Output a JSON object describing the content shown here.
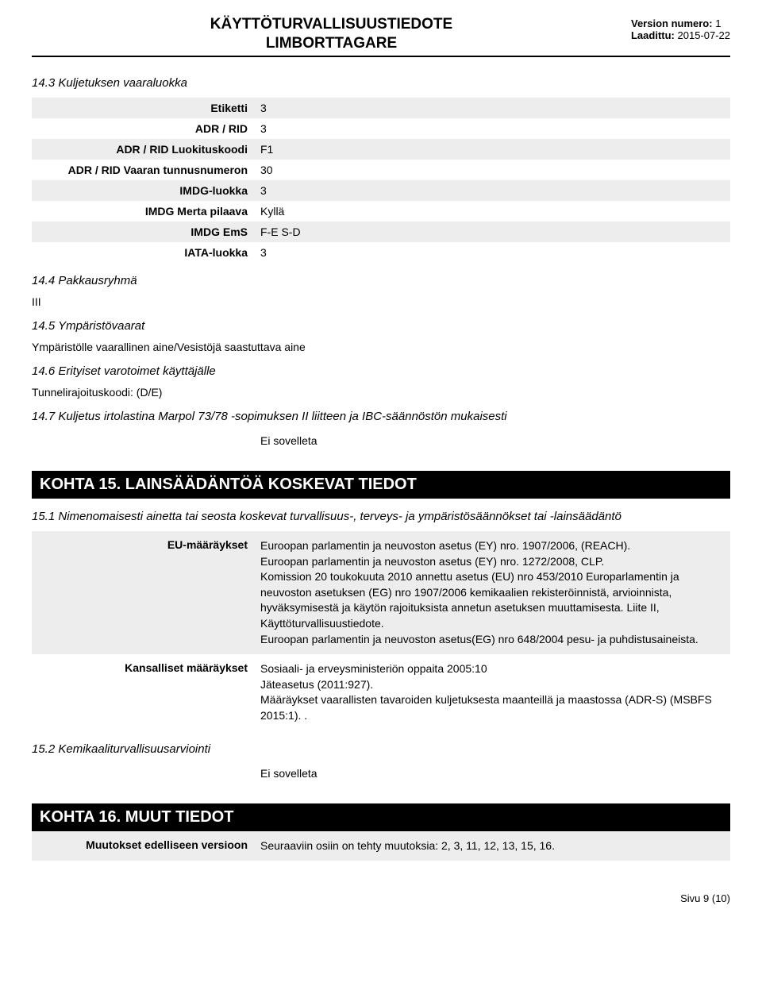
{
  "header": {
    "title1": "KÄYTTÖTURVALLISUUSTIEDOTE",
    "title2": "LIMBORTTAGARE",
    "version_label": "Version numero:",
    "version_value": "1",
    "date_label": "Laadittu:",
    "date_value": "2015-07-22"
  },
  "s14_3": {
    "heading": "14.3 Kuljetuksen vaaraluokka",
    "rows": [
      {
        "label": "Etiketti",
        "value": "3"
      },
      {
        "label": "ADR / RID",
        "value": "3"
      },
      {
        "label": "ADR / RID Luokituskoodi",
        "value": "F1"
      },
      {
        "label": "ADR / RID Vaaran tunnusnumeron",
        "value": "30"
      },
      {
        "label": "IMDG-luokka",
        "value": "3"
      },
      {
        "label": "IMDG Merta pilaava",
        "value": "Kyllä"
      },
      {
        "label": "IMDG EmS",
        "value": "F-E S-D"
      },
      {
        "label": "IATA-luokka",
        "value": "3"
      }
    ]
  },
  "s14_4": {
    "heading": "14.4 Pakkausryhmä",
    "text": "III"
  },
  "s14_5": {
    "heading": "14.5 Ympäristövaarat",
    "text": "Ympäristölle vaarallinen aine/Vesistöjä saastuttava aine"
  },
  "s14_6": {
    "heading": "14.6 Erityiset varotoimet käyttäjälle",
    "text": "Tunnelirajoituskoodi: (D/E)"
  },
  "s14_7": {
    "heading": "14.7 Kuljetus irtolastina Marpol 73/78 -sopimuksen II liitteen ja IBC-säännöstön mukaisesti",
    "value": "Ei sovelleta"
  },
  "kohta15": {
    "bar": "KOHTA 15. LAINSÄÄDÄNTÖÄ KOSKEVAT TIEDOT",
    "s15_1_heading": "15.1 Nimenomaisesti ainetta tai seosta koskevat turvallisuus-, terveys- ja ympäristösäännökset tai -lainsäädäntö",
    "eu_label": "EU-määräykset",
    "eu_value": "Euroopan parlamentin ja neuvoston asetus (EY) nro. 1907/2006, (REACH).\nEuroopan parlamentin ja neuvoston asetus (EY) nro. 1272/2008, CLP.\nKomission 20 toukokuuta 2010 annettu asetus (EU) nro 453/2010 Europarlamentin ja neuvoston asetuksen (EG) nro 1907/2006 kemikaalien rekisteröinnistä, arvioinnista, hyväksymisestä ja käytön rajoituksista annetun asetuksen muuttamisesta. Liite II, Käyttöturvallisuustiedote.\nEuroopan parlamentin ja neuvoston asetus(EG) nro 648/2004 pesu- ja puhdistusaineista.",
    "nat_label": "Kansalliset määräykset",
    "nat_value": "Sosiaali- ja erveysministeriön oppaita 2005:10\nJäteasetus (2011:927).\nMääräykset vaarallisten tavaroiden kuljetuksesta maanteillä ja maastossa (ADR-S) (MSBFS 2015:1). .",
    "s15_2_heading": "15.2 Kemikaaliturvallisuusarviointi",
    "s15_2_value": "Ei sovelleta"
  },
  "kohta16": {
    "bar": "KOHTA 16. MUUT TIEDOT",
    "row_label": "Muutokset edelliseen versioon",
    "row_value": "Seuraaviin osiin on tehty muutoksia: 2, 3, 11, 12, 13, 15, 16."
  },
  "footer": {
    "page": "Sivu 9 (10)"
  }
}
